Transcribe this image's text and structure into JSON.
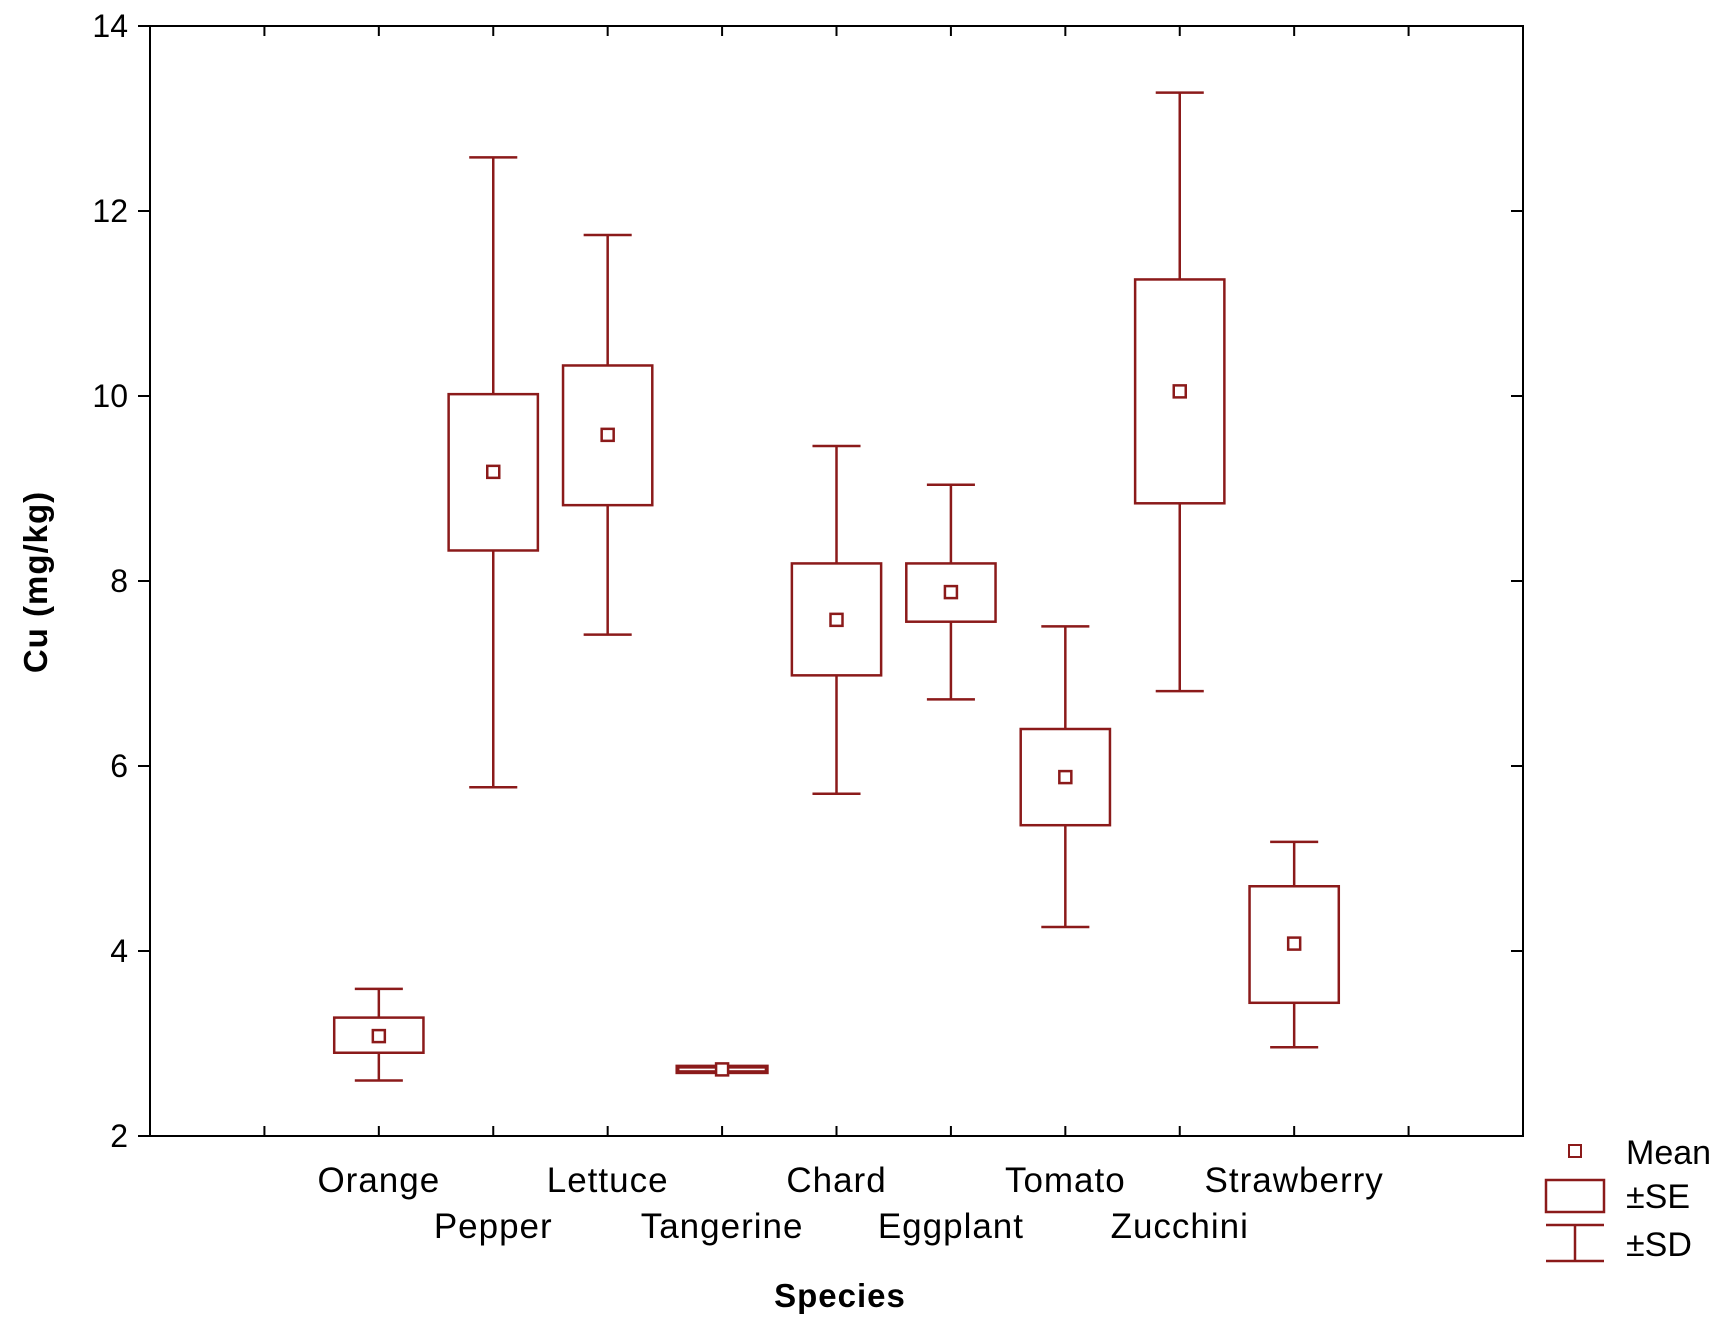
{
  "chart_data": {
    "type": "box",
    "title": "",
    "xlabel": "Species",
    "ylabel": "Cu (mg/kg)",
    "ylim": [
      2,
      14
    ],
    "yticks": [
      2,
      4,
      6,
      8,
      10,
      12,
      14
    ],
    "categories": [
      "Orange",
      "Pepper",
      "Lettuce",
      "Tangerine",
      "Chard",
      "Eggplant",
      "Tomato",
      "Zucchini",
      "Strawberry"
    ],
    "series": [
      {
        "name": "Mean",
        "values": [
          3.08,
          9.18,
          9.58,
          2.72,
          7.58,
          7.88,
          5.88,
          10.05,
          4.08
        ]
      },
      {
        "name": "±SE low",
        "values": [
          2.9,
          8.33,
          8.82,
          2.69,
          6.98,
          7.56,
          5.36,
          8.84,
          3.44
        ]
      },
      {
        "name": "±SE high",
        "values": [
          3.28,
          10.02,
          10.33,
          2.75,
          8.19,
          8.19,
          6.4,
          11.26,
          4.7
        ]
      },
      {
        "name": "±SD low",
        "values": [
          2.6,
          5.77,
          7.42,
          2.72,
          5.7,
          6.72,
          4.26,
          6.81,
          2.96
        ]
      },
      {
        "name": "±SD high",
        "values": [
          3.59,
          12.58,
          11.74,
          2.72,
          9.46,
          9.04,
          7.51,
          13.28,
          5.18
        ]
      }
    ],
    "legend": {
      "position": "bottom-right",
      "items": [
        {
          "symbol": "mean",
          "label": "Mean"
        },
        {
          "symbol": "se",
          "label": "±SE"
        },
        {
          "symbol": "sd",
          "label": "±SD"
        }
      ]
    },
    "color": "#8b1a1a"
  }
}
